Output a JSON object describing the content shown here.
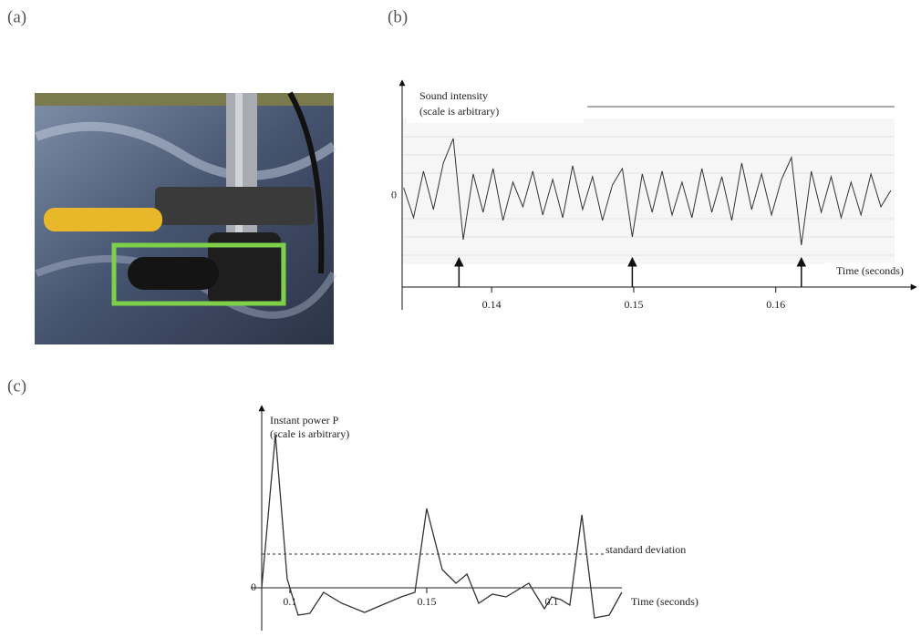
{
  "panel_labels": [
    "(a)",
    "(b)",
    "(c)"
  ],
  "signal": {
    "y_label": [
      "Sound intensity",
      "(scale is arbitrary)"
    ],
    "x_label": "Time (seconds)",
    "xlim": [
      0.1337,
      0.1699
    ],
    "ylim": [
      -4.17,
      4.23
    ],
    "xticks": [
      0.14,
      0.15,
      0.16
    ],
    "yticks": [
      0
    ],
    "x": [
      0.1338,
      0.1345,
      0.1352,
      0.1359,
      0.1366,
      0.1373,
      0.138,
      0.1387,
      0.1394,
      0.1401,
      0.1408,
      0.1415,
      0.1422,
      0.1429,
      0.1436,
      0.1443,
      0.145,
      0.1457,
      0.1464,
      0.1471,
      0.1478,
      0.1485,
      0.1492,
      0.1499,
      0.1506,
      0.1513,
      0.152,
      0.1527,
      0.1534,
      0.1541,
      0.1548,
      0.1555,
      0.1562,
      0.1569,
      0.1576,
      0.1583,
      0.159,
      0.1597,
      0.1604,
      0.1611,
      0.1618,
      0.1625,
      0.1632,
      0.1639,
      0.1646,
      0.1653,
      0.166,
      0.1667,
      0.1674,
      0.1681
    ],
    "values": [
      0.3,
      -0.8,
      0.9,
      -0.5,
      1.2,
      2.1,
      -1.6,
      0.8,
      -0.6,
      1.0,
      -0.9,
      0.5,
      -0.4,
      0.9,
      -0.7,
      0.6,
      -0.8,
      1.1,
      -0.5,
      0.7,
      -0.9,
      0.4,
      1.0,
      -1.5,
      0.8,
      -0.6,
      0.9,
      -0.7,
      0.5,
      -0.8,
      1.0,
      -0.6,
      0.7,
      -0.9,
      1.2,
      -0.5,
      0.8,
      -0.7,
      0.6,
      1.4,
      -1.8,
      0.9,
      -0.6,
      0.7,
      -0.8,
      0.5,
      -0.7,
      0.8,
      -0.4,
      0.2
    ],
    "events": [
      0.1377,
      0.1499,
      0.1618
    ]
  },
  "power": {
    "y_label": [
      "Instant power P",
      "(scale is arbitrary)"
    ],
    "x_label": "Time (seconds)",
    "xlim": [
      0.0897,
      0.224
    ],
    "ylim": [
      -2.25,
      10
    ],
    "xticks": [
      0.1,
      0.15
    ],
    "yticks": [
      0
    ],
    "x": [
      0.0897,
      0.0947,
      0.099,
      0.103,
      0.1073,
      0.1123,
      0.119,
      0.1273,
      0.1407,
      0.1457,
      0.15,
      0.1557,
      0.1607,
      0.1647,
      0.169,
      0.174,
      0.179,
      0.1873,
      0.193,
      0.1957,
      0.199,
      0.2023,
      0.2067,
      0.2113,
      0.2167,
      0.2213
    ],
    "values": [
      0,
      8.4,
      0.5,
      -1.5,
      -1.4,
      -0.25,
      -0.85,
      -1.35,
      -0.5,
      -0.25,
      4.35,
      1,
      0.25,
      0.75,
      -0.85,
      -0.35,
      -0.5,
      0.25,
      -1.15,
      -0.5,
      -0.65,
      -0.95,
      4,
      -1.65,
      -1.5,
      -0.25
    ],
    "threshold": 1.85,
    "threshold_label": "standard deviation",
    "extra_tick_label": "0.1"
  }
}
